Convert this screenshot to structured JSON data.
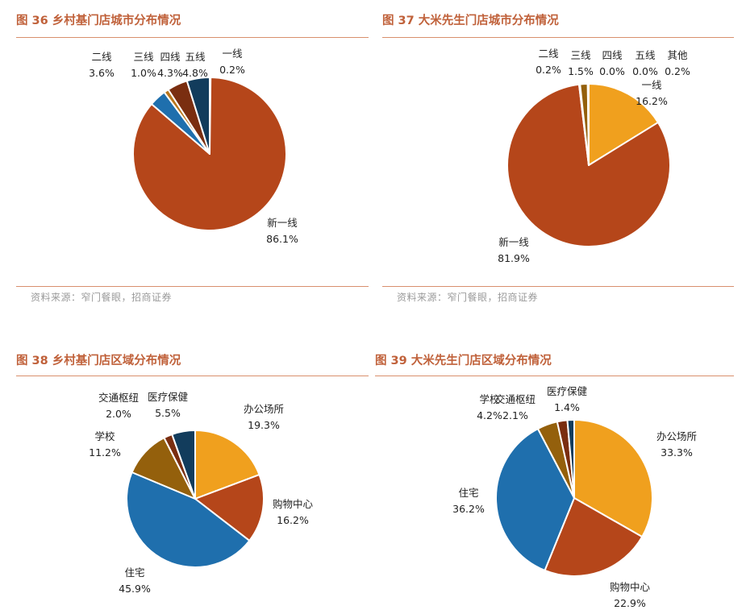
{
  "colors": {
    "title": "#c0613a",
    "rule": "#d98f6d",
    "rust": "#b5461a",
    "orange": "#f0a01e",
    "blue": "#1f6fad",
    "brown": "#94600c",
    "dark_brown": "#7a2e10",
    "navy": "#123c5c",
    "light_brown": "#b9761c",
    "gray": "#7f7f7f"
  },
  "figures": [
    {
      "title": "图 36  乡村基门店城市分布情况",
      "source": "资料来源：窄门餐眼，招商证券"
    },
    {
      "title": "图 37  大米先生门店城市分布情况",
      "source": "资料来源：窄门餐眼，招商证券"
    },
    {
      "title": "图 38  乡村基门店区域分布情况",
      "source": ""
    },
    {
      "title": "图 39  大米先生门店区域分布情况",
      "source": ""
    }
  ],
  "chart_data": [
    {
      "type": "pie",
      "title": "乡村基门店城市分布情况",
      "start_angle_deg": 0,
      "slices": [
        {
          "label": "一线",
          "value": 0.2,
          "value_label": "0.2%",
          "color": "#d4731e"
        },
        {
          "label": "新一线",
          "value": 86.1,
          "value_label": "86.1%",
          "color": "#b5461a"
        },
        {
          "label": "二线",
          "value": 3.6,
          "value_label": "3.6%",
          "color": "#1f6fad"
        },
        {
          "label": "三线",
          "value": 1.0,
          "value_label": "1.0%",
          "color": "#b9761c"
        },
        {
          "label": "四线",
          "value": 4.3,
          "value_label": "4.3%",
          "color": "#7a2e10"
        },
        {
          "label": "五线",
          "value": 4.8,
          "value_label": "4.8%",
          "color": "#123c5c"
        }
      ]
    },
    {
      "type": "pie",
      "title": "大米先生门店城市分布情况",
      "start_angle_deg": 0,
      "slices": [
        {
          "label": "一线",
          "value": 16.2,
          "value_label": "16.2%",
          "color": "#f0a01e"
        },
        {
          "label": "新一线",
          "value": 81.9,
          "value_label": "81.9%",
          "color": "#b5461a"
        },
        {
          "label": "二线",
          "value": 0.2,
          "value_label": "0.2%",
          "color": "#1f6fad"
        },
        {
          "label": "三线",
          "value": 1.5,
          "value_label": "1.5%",
          "color": "#94600c"
        },
        {
          "label": "四线",
          "value": 0.0,
          "value_label": "0.0%",
          "color": "#7a2e10"
        },
        {
          "label": "五线",
          "value": 0.0,
          "value_label": "0.0%",
          "color": "#123c5c"
        },
        {
          "label": "其他",
          "value": 0.2,
          "value_label": "0.2%",
          "color": "#7f7f7f"
        }
      ]
    },
    {
      "type": "pie",
      "title": "乡村基门店区域分布情况",
      "start_angle_deg": 0,
      "slices": [
        {
          "label": "办公场所",
          "value": 19.3,
          "value_label": "19.3%",
          "color": "#f0a01e"
        },
        {
          "label": "购物中心",
          "value": 16.2,
          "value_label": "16.2%",
          "color": "#b5461a"
        },
        {
          "label": "住宅",
          "value": 45.9,
          "value_label": "45.9%",
          "color": "#1f6fad"
        },
        {
          "label": "学校",
          "value": 11.2,
          "value_label": "11.2%",
          "color": "#94600c"
        },
        {
          "label": "交通枢纽",
          "value": 2.0,
          "value_label": "2.0%",
          "color": "#7a2e10"
        },
        {
          "label": "医疗保健",
          "value": 5.5,
          "value_label": "5.5%",
          "color": "#123c5c"
        }
      ]
    },
    {
      "type": "pie",
      "title": "大米先生门店区域分布情况",
      "start_angle_deg": 0,
      "slices": [
        {
          "label": "办公场所",
          "value": 33.3,
          "value_label": "33.3%",
          "color": "#f0a01e"
        },
        {
          "label": "购物中心",
          "value": 22.9,
          "value_label": "22.9%",
          "color": "#b5461a"
        },
        {
          "label": "住宅",
          "value": 36.2,
          "value_label": "36.2%",
          "color": "#1f6fad"
        },
        {
          "label": "学校",
          "value": 4.2,
          "value_label": "4.2%",
          "color": "#94600c"
        },
        {
          "label": "交通枢纽",
          "value": 2.1,
          "value_label": "2.1%",
          "color": "#7a2e10"
        },
        {
          "label": "医疗保健",
          "value": 1.4,
          "value_label": "1.4%",
          "color": "#123c5c"
        }
      ]
    }
  ]
}
